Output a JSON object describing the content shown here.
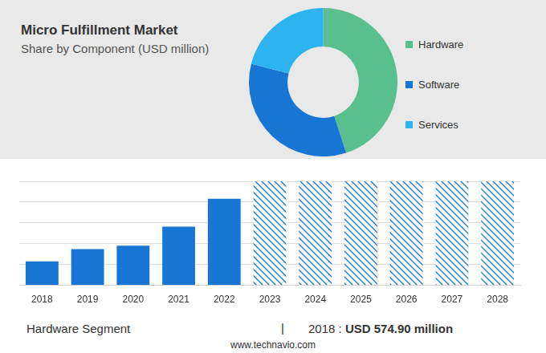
{
  "chart_data": [
    {
      "type": "doughnut",
      "title": "Micro Fulfillment Market",
      "subtitle": "Share by Component (USD million)",
      "categories": [
        "Hardware",
        "Software",
        "Services"
      ],
      "values": [
        45,
        34,
        21
      ],
      "colors": [
        "#5abf8f",
        "#1776d3",
        "#2db3ef"
      ],
      "legend": "right"
    },
    {
      "type": "bar",
      "categories": [
        "2018",
        "2019",
        "2020",
        "2021",
        "2022",
        "2023",
        "2024",
        "2025",
        "2026",
        "2027",
        "2028"
      ],
      "series": [
        {
          "color": "#1776d3",
          "values": [
            574.9,
            870,
            950,
            1410,
            2080,
            null,
            null,
            null,
            null,
            null,
            null
          ]
        },
        {
          "color": "#1776d3",
          "line_style": "hatched",
          "values": [
            null,
            null,
            null,
            null,
            null,
            2500,
            2500,
            2500,
            2500,
            2500,
            2500
          ]
        }
      ],
      "ylim": [
        0,
        2500
      ],
      "yticks": [
        0,
        500,
        1000,
        1500,
        2000,
        2500
      ],
      "grid": true,
      "tick_labels": "x"
    }
  ],
  "footer": {
    "segment": "Hardware Segment",
    "separator": "|",
    "year": "2018 :",
    "value": "USD 574.90 million",
    "source": "www.technavio.com"
  }
}
